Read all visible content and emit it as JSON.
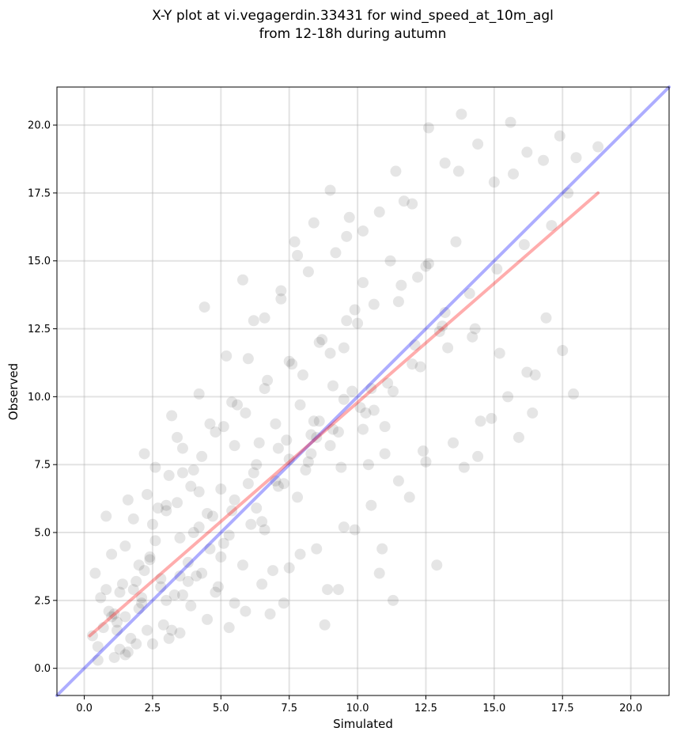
{
  "chart_data": {
    "type": "scatter",
    "title": [
      "X-Y plot at vi.vegagerdin.33431 for wind_speed_at_10m_agl",
      "from 12-18h during autumn"
    ],
    "xlabel": "Simulated",
    "ylabel": "Observed",
    "xlim": [
      -1.0,
      21.4
    ],
    "ylim": [
      -1.0,
      21.4
    ],
    "xticks": [
      0.0,
      2.5,
      5.0,
      7.5,
      10.0,
      12.5,
      15.0,
      17.5,
      20.0
    ],
    "yticks": [
      0.0,
      2.5,
      5.0,
      7.5,
      10.0,
      12.5,
      15.0,
      17.5,
      20.0
    ],
    "xtick_labels": [
      "0.0",
      "2.5",
      "5.0",
      "7.5",
      "10.0",
      "12.5",
      "15.0",
      "17.5",
      "20.0"
    ],
    "ytick_labels": [
      "0.0",
      "2.5",
      "5.0",
      "7.5",
      "10.0",
      "12.5",
      "15.0",
      "17.5",
      "20.0"
    ],
    "grid": true,
    "points": {
      "color": "#000000",
      "opacity": 0.08,
      "x": [
        0.3,
        0.5,
        0.7,
        0.9,
        1.1,
        1.3,
        1.5,
        1.7,
        1.9,
        2.1,
        0.4,
        0.8,
        1.2,
        1.6,
        2.0,
        2.4,
        2.8,
        3.2,
        3.6,
        4.0,
        1.0,
        1.4,
        1.8,
        2.2,
        2.6,
        3.0,
        3.4,
        3.8,
        4.2,
        4.6,
        5.0,
        5.4,
        5.8,
        6.2,
        6.6,
        7.0,
        7.4,
        7.8,
        8.2,
        8.6,
        9.0,
        9.4,
        9.8,
        10.2,
        10.6,
        11.0,
        2.3,
        2.7,
        3.1,
        3.5,
        3.9,
        4.3,
        4.7,
        5.1,
        5.5,
        5.9,
        6.3,
        6.7,
        7.1,
        7.5,
        7.9,
        8.3,
        8.7,
        9.1,
        9.5,
        9.9,
        0.6,
        1.0,
        1.5,
        2.0,
        2.5,
        3.0,
        3.5,
        4.0,
        4.5,
        5.0,
        5.5,
        6.0,
        6.5,
        7.0,
        7.5,
        8.0,
        8.5,
        9.0,
        9.5,
        10.0,
        10.5,
        11.0,
        11.5,
        12.0,
        12.5,
        13.0,
        1.9,
        2.9,
        3.9,
        4.9,
        5.9,
        6.9,
        7.9,
        8.9,
        9.9,
        10.9,
        11.9,
        12.9,
        13.9,
        14.9,
        15.9,
        16.9,
        17.9,
        1.2,
        1.8,
        2.4,
        3.0,
        3.6,
        4.2,
        4.8,
        5.4,
        6.0,
        6.6,
        7.2,
        7.8,
        8.4,
        9.0,
        9.6,
        10.2,
        10.8,
        11.4,
        12.0,
        12.6,
        13.2,
        13.8,
        14.4,
        15.0,
        15.6,
        16.2,
        16.8,
        17.4,
        18.0,
        18.8,
        0.5,
        1.5,
        2.5,
        3.5,
        4.5,
        5.5,
        6.5,
        7.5,
        8.5,
        9.5,
        10.5,
        11.5,
        12.5,
        13.5,
        14.5,
        15.5,
        16.5,
        17.5,
        2.2,
        3.2,
        4.2,
        5.2,
        6.2,
        7.2,
        8.2,
        9.2,
        10.2,
        11.2,
        12.2,
        13.2,
        14.2,
        15.2,
        16.2,
        1.1,
        2.1,
        3.1,
        4.1,
        5.1,
        6.1,
        7.1,
        8.1,
        9.1,
        10.1,
        11.1,
        12.1,
        13.1,
        14.1,
        15.1,
        16.1,
        17.1,
        0.8,
        1.6,
        2.6,
        3.6,
        4.6,
        5.6,
        6.6,
        7.6,
        8.6,
        9.6,
        10.6,
        11.6,
        12.6,
        13.6,
        1.3,
        2.3,
        3.3,
        4.3,
        5.3,
        6.3,
        7.3,
        8.3,
        9.3,
        10.3,
        11.3,
        12.3,
        13.3,
        14.3,
        4.4,
        5.8,
        7.7,
        9.7,
        11.7,
        13.7,
        15.7,
        17.7,
        3.4,
        6.4,
        8.4,
        10.4,
        12.4,
        14.4,
        16.4,
        2.8,
        3.8,
        4.8,
        5.3,
        6.8,
        7.3,
        8.8,
        9.3,
        10.8,
        11.3
      ],
      "y": [
        1.2,
        0.8,
        1.5,
        2.1,
        0.4,
        2.8,
        1.9,
        1.1,
        3.2,
        2.4,
        3.5,
        2.9,
        1.7,
        0.6,
        2.2,
        4.1,
        3.3,
        1.4,
        2.7,
        5.0,
        4.2,
        3.1,
        5.5,
        3.6,
        4.7,
        2.5,
        6.1,
        3.9,
        5.2,
        4.4,
        6.6,
        5.8,
        3.8,
        7.2,
        5.1,
        6.9,
        8.4,
        6.3,
        7.6,
        9.1,
        8.2,
        7.4,
        10.2,
        8.8,
        9.5,
        7.9,
        6.4,
        5.9,
        7.1,
        4.8,
        6.7,
        7.8,
        5.6,
        8.9,
        6.2,
        9.4,
        7.5,
        10.6,
        8.1,
        11.3,
        9.7,
        8.6,
        12.1,
        10.4,
        11.8,
        13.2,
        2.6,
        1.9,
        4.5,
        3.8,
        5.3,
        6.0,
        3.4,
        7.3,
        5.7,
        4.1,
        8.2,
        6.8,
        5.4,
        9.0,
        7.7,
        10.8,
        8.5,
        11.6,
        9.9,
        12.7,
        10.3,
        8.9,
        13.5,
        11.2,
        14.8,
        12.4,
        0.9,
        1.6,
        2.3,
        3.0,
        2.1,
        3.6,
        4.2,
        2.9,
        5.1,
        4.4,
        6.3,
        3.8,
        7.4,
        9.2,
        8.5,
        12.9,
        10.1,
        1.4,
        2.9,
        4.0,
        5.8,
        7.2,
        6.5,
        8.7,
        9.8,
        11.4,
        12.9,
        13.6,
        15.2,
        16.4,
        17.6,
        15.9,
        14.2,
        16.8,
        18.3,
        17.1,
        19.9,
        18.6,
        20.4,
        19.3,
        17.9,
        20.1,
        19.0,
        18.7,
        19.6,
        18.8,
        19.2,
        0.3,
        0.5,
        0.9,
        1.3,
        1.8,
        2.4,
        3.1,
        3.7,
        4.4,
        5.2,
        6.0,
        6.9,
        7.6,
        8.3,
        9.1,
        10.0,
        10.8,
        11.7,
        7.9,
        9.3,
        10.1,
        11.5,
        12.8,
        13.9,
        14.6,
        15.3,
        16.1,
        15.0,
        14.4,
        13.1,
        12.2,
        11.6,
        10.9,
        2.0,
        2.6,
        1.1,
        3.4,
        4.6,
        5.3,
        6.7,
        7.3,
        8.8,
        9.6,
        10.5,
        11.9,
        12.6,
        13.8,
        14.7,
        15.6,
        16.3,
        5.6,
        6.2,
        7.4,
        8.1,
        9.0,
        9.7,
        10.3,
        11.2,
        12.0,
        12.8,
        13.4,
        14.1,
        14.9,
        15.7,
        0.7,
        1.4,
        2.7,
        3.5,
        4.9,
        5.9,
        6.8,
        7.9,
        8.7,
        9.4,
        10.2,
        11.1,
        11.8,
        12.5,
        13.3,
        14.3,
        15.7,
        16.6,
        17.2,
        18.3,
        18.2,
        17.5,
        8.5,
        8.3,
        9.1,
        7.5,
        8.0,
        7.8,
        9.4,
        3.0,
        3.2,
        2.8,
        1.5,
        2.0,
        2.4,
        1.6,
        2.9,
        3.5,
        2.5
      ],
      "fit_note": ""
    },
    "lines": [
      {
        "kind": "identity",
        "color": "#0000ff",
        "opacity": 0.32,
        "x": [
          -1.0,
          21.4
        ],
        "y": [
          -1.0,
          21.4
        ]
      },
      {
        "kind": "regression",
        "color": "#ff0000",
        "opacity": 0.32,
        "x": [
          0.2,
          18.8
        ],
        "y": [
          1.2,
          17.5
        ]
      }
    ]
  }
}
